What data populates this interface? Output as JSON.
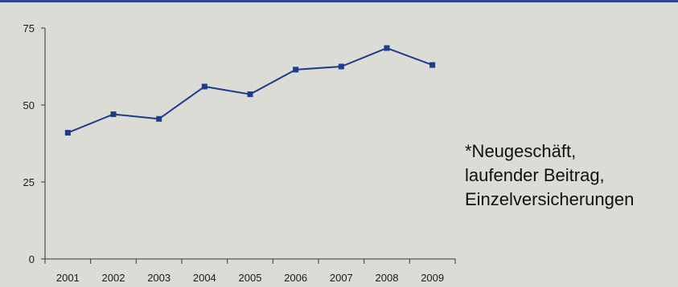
{
  "chart_data": {
    "type": "line",
    "categories": [
      "2001",
      "2002",
      "2003",
      "2004",
      "2005",
      "2006",
      "2007",
      "2008",
      "2009"
    ],
    "series": [
      {
        "values": [
          41,
          47,
          45.5,
          56,
          53.5,
          61.5,
          62.5,
          68.5,
          63
        ]
      }
    ],
    "yticks": [
      "0",
      "25",
      "50",
      "75"
    ],
    "ylim": [
      0,
      75
    ],
    "line_color": "#1f3c8c",
    "marker": "square",
    "grid": false
  },
  "note": {
    "lines": [
      "*Neugeschäft,",
      "laufender Beitrag,",
      "Einzelversicherungen"
    ]
  }
}
